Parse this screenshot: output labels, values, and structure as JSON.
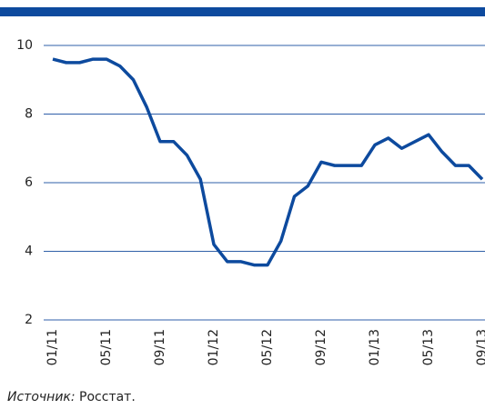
{
  "chart_data": {
    "type": "line",
    "categories": [
      "01/11",
      null,
      null,
      null,
      "05/11",
      null,
      null,
      null,
      "09/11",
      null,
      null,
      null,
      "01/12",
      null,
      null,
      null,
      "05/12",
      null,
      null,
      null,
      "09/12",
      null,
      null,
      null,
      "01/13",
      null,
      null,
      null,
      "05/13",
      null,
      null,
      null,
      "09/13"
    ],
    "values": [
      9.6,
      9.5,
      9.5,
      9.6,
      9.6,
      9.4,
      9.0,
      8.2,
      7.2,
      7.2,
      6.8,
      6.1,
      4.2,
      3.7,
      3.7,
      3.6,
      3.6,
      4.3,
      5.6,
      5.9,
      6.6,
      6.5,
      6.5,
      6.5,
      7.1,
      7.3,
      7.0,
      7.2,
      7.4,
      6.9,
      6.5,
      6.5,
      6.1
    ],
    "color": "#0d4a9e",
    "ylim": [
      2,
      10
    ],
    "yticks": [
      2,
      4,
      6,
      8,
      10
    ],
    "grid": true,
    "source_label": "Источник:",
    "source_text": "Росстат."
  }
}
